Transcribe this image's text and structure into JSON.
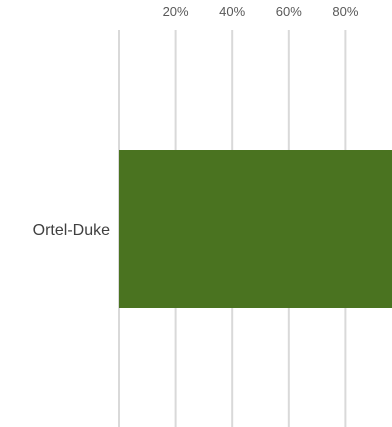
{
  "chart_data": {
    "type": "bar",
    "orientation": "horizontal",
    "categories": [
      "Ortel-Duke"
    ],
    "values": [
      100
    ],
    "x_ticks": [
      "20%",
      "40%",
      "60%",
      "80%"
    ],
    "xlim": [
      0,
      100
    ],
    "grid": true,
    "axis_position": "top",
    "bar_color": "#4a7320",
    "grid_color": "#d9d9d9"
  }
}
